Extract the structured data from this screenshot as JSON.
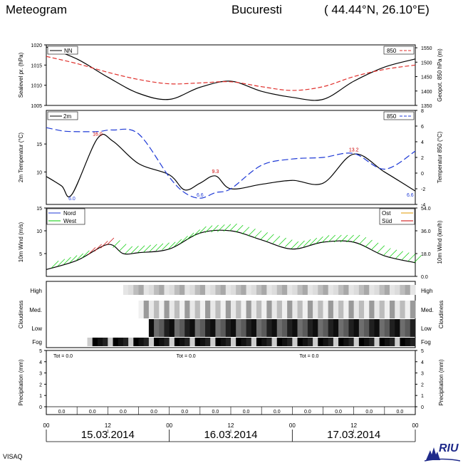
{
  "header": {
    "title": "Meteogram",
    "location": "Bucuresti",
    "coords": "( 44.44°N, 26.10°E)"
  },
  "footer": {
    "left": "VISAQ",
    "logo": "RIU"
  },
  "time_axis": {
    "ticks": [
      "00",
      "12",
      "00",
      "12",
      "00",
      "12",
      "00"
    ],
    "dates": [
      "15.03.2014",
      "16.03.2014",
      "17.03.2014"
    ]
  },
  "chart_data": [
    {
      "type": "line",
      "panel": "pressure",
      "ylabel_left": "Sealevel pr. (hPa)",
      "ylabel_right": "Geopot. 850 hPa (m)",
      "yticks_left": [
        "1005",
        "1010",
        "1015",
        "1020"
      ],
      "yticks_right": [
        "1350",
        "1400",
        "1450",
        "1500",
        "1550"
      ],
      "ylim_left": [
        1005,
        1020
      ],
      "ylim_right": [
        1350,
        1560
      ],
      "legend": [
        "NN",
        "850"
      ],
      "x_hours": [
        0,
        6,
        12,
        18,
        24,
        30,
        36,
        42,
        48,
        54,
        60,
        66,
        72
      ],
      "series": [
        {
          "name": "NN",
          "color": "#000000",
          "values": [
            1019.5,
            1016.5,
            1012,
            1008,
            1006.5,
            1009.5,
            1011,
            1008.5,
            1007,
            1006.5,
            1011,
            1014.5,
            1016.5
          ]
        },
        {
          "name": "850",
          "color": "#e0302c",
          "values": [
            1520,
            1495,
            1465,
            1440,
            1425,
            1428,
            1432,
            1415,
            1402,
            1415,
            1450,
            1475,
            1490
          ]
        }
      ]
    },
    {
      "type": "line",
      "panel": "temperature",
      "ylabel_left": "2m Temperatur (°C)",
      "ylabel_right": "Temperatur 850 (°C)",
      "yticks_left": [
        "10",
        "15"
      ],
      "yticks_right": [
        "-4",
        "-2",
        "0",
        "2",
        "4",
        "6",
        "8"
      ],
      "ylim_left": [
        4.2,
        21
      ],
      "ylim_right": [
        -4,
        8
      ],
      "legend": [
        "2m",
        "850"
      ],
      "x_hours": [
        0,
        3,
        5,
        10,
        13,
        18,
        24,
        27,
        30,
        33,
        36,
        42,
        48,
        54,
        60,
        66,
        72
      ],
      "series": [
        {
          "name": "2m",
          "color": "#000000",
          "values": [
            9.2,
            7.5,
            6.0,
            16.0,
            15.5,
            11.5,
            9.5,
            6.8,
            8.0,
            9.3,
            7.0,
            7.8,
            8.5,
            8.0,
            13.2,
            10.0,
            6.6
          ]
        },
        {
          "name": "850",
          "color": "#1f3ad6",
          "values": [
            5.8,
            5.4,
            5.3,
            5.3,
            5.5,
            5.0,
            -0.5,
            -2.5,
            -3.2,
            -2.5,
            -2.0,
            1.0,
            1.8,
            2.0,
            2.5,
            0.5,
            2.8
          ]
        }
      ],
      "annotations": [
        "6.0",
        "16.0",
        "6.6",
        "9.3",
        "13.2",
        "6.6"
      ]
    },
    {
      "type": "line",
      "panel": "wind",
      "ylabel_left": "10m Wind (m/s)",
      "ylabel_right": "10m Wind (km/h)",
      "yticks_left": [
        "5",
        "10",
        "15"
      ],
      "yticks_right": [
        "0.0",
        "18.0",
        "36.0",
        "54.0"
      ],
      "ylim_left": [
        0,
        15
      ],
      "ylim_right": [
        0,
        54
      ],
      "legend": [
        "Nord",
        "West",
        "Ost",
        "Süd"
      ],
      "legend_colors": [
        "#1f3ad6",
        "#00cc00",
        "#e09a00",
        "#cc0000"
      ],
      "x_hours": [
        0,
        6,
        12,
        15,
        18,
        24,
        30,
        36,
        42,
        48,
        54,
        60,
        66,
        72
      ],
      "series": [
        {
          "name": "speed",
          "color": "#000000",
          "values": [
            1.5,
            3.5,
            7.0,
            5.0,
            5.2,
            6.0,
            9.5,
            10.0,
            8.0,
            6.0,
            7.5,
            7.5,
            4.5,
            3.0
          ]
        }
      ]
    },
    {
      "type": "heatmap",
      "panel": "cloudiness",
      "ylabel": "Cloudiness",
      "rows": [
        "High",
        "Med.",
        "Low",
        "Fog"
      ]
    },
    {
      "type": "bar",
      "panel": "precipitation",
      "ylabel": "Precipitation (mm)",
      "yticks": [
        "0",
        "1",
        "2",
        "3",
        "4",
        "5"
      ],
      "ylim": [
        0,
        5
      ],
      "totals": [
        "Tot =  0.0",
        "Tot =  0.0",
        "Tot =  0.0"
      ],
      "period_values": [
        "0.0",
        "0.0",
        "0.0",
        "0.0",
        "0.0",
        "0.0",
        "0.0",
        "0.0",
        "0.0",
        "0.0",
        "0.0",
        "0.0"
      ]
    }
  ]
}
